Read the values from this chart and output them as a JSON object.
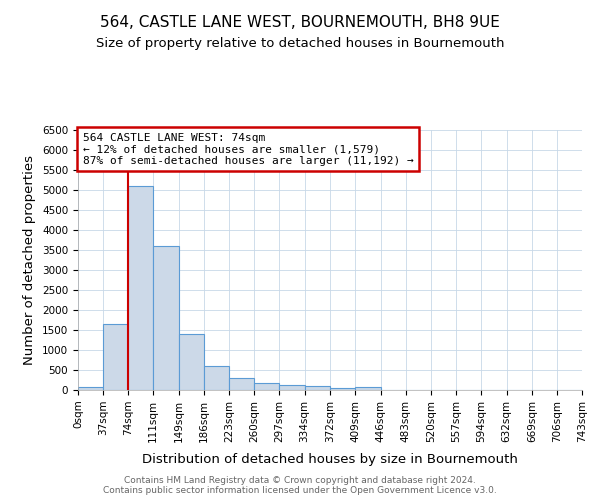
{
  "title": "564, CASTLE LANE WEST, BOURNEMOUTH, BH8 9UE",
  "subtitle": "Size of property relative to detached houses in Bournemouth",
  "xlabel": "Distribution of detached houses by size in Bournemouth",
  "ylabel": "Number of detached properties",
  "footnote1": "Contains HM Land Registry data © Crown copyright and database right 2024.",
  "footnote2": "Contains public sector information licensed under the Open Government Licence v3.0.",
  "bin_edges": [
    0,
    37,
    74,
    111,
    149,
    186,
    223,
    260,
    297,
    334,
    372,
    409,
    446,
    483,
    520,
    557,
    594,
    632,
    669,
    706,
    743
  ],
  "bar_heights": [
    75,
    1650,
    5100,
    3600,
    1400,
    600,
    300,
    165,
    130,
    100,
    55,
    65,
    0,
    0,
    0,
    0,
    0,
    0,
    0,
    0
  ],
  "bar_color": "#ccd9e8",
  "bar_edge_color": "#5b9bd5",
  "property_size": 74,
  "red_line_color": "#cc0000",
  "annotation_text_line1": "564 CASTLE LANE WEST: 74sqm",
  "annotation_text_line2": "← 12% of detached houses are smaller (1,579)",
  "annotation_text_line3": "87% of semi-detached houses are larger (11,192) →",
  "annotation_box_color": "#cc0000",
  "ylim": [
    0,
    6500
  ],
  "xlim": [
    0,
    743
  ],
  "yticks": [
    0,
    500,
    1000,
    1500,
    2000,
    2500,
    3000,
    3500,
    4000,
    4500,
    5000,
    5500,
    6000,
    6500
  ],
  "background_color": "#ffffff",
  "grid_color": "#c8d8e8",
  "title_fontsize": 11,
  "subtitle_fontsize": 9.5,
  "tick_label_fontsize": 7.5,
  "axis_label_fontsize": 9.5,
  "annotation_fontsize": 8,
  "footnote_fontsize": 6.5
}
